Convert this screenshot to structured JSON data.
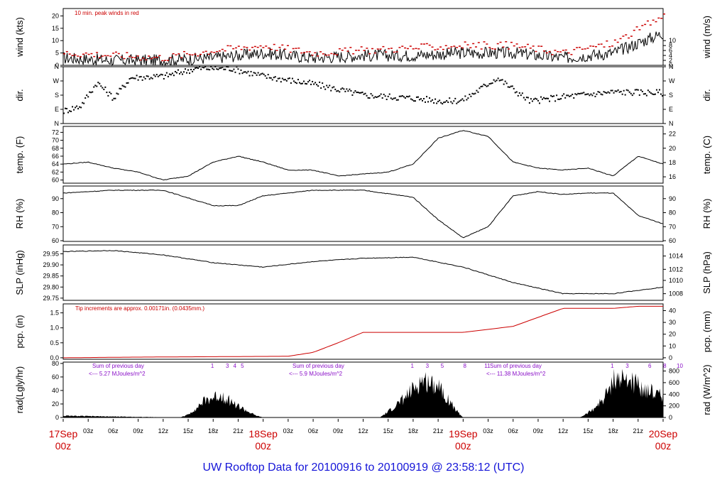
{
  "page_title": "UW Rooftop Data for 20100916  to  20100919 @ 23:58:12  (UTC)",
  "colors": {
    "axis": "#000000",
    "red": "#cc0000",
    "purple": "#8a10c8",
    "title_blue": "#1515d8"
  },
  "time_axis": {
    "hour_ticks": [
      "03z",
      "06z",
      "09z",
      "12z",
      "15z",
      "18z",
      "21z",
      "03z",
      "06z",
      "09z",
      "12z",
      "15z",
      "18z",
      "21z",
      "03z",
      "06z",
      "09z",
      "12z",
      "15z",
      "18z",
      "21z"
    ],
    "day_labels": [
      {
        "day": "17Sep",
        "hour": "00z"
      },
      {
        "day": "18Sep",
        "hour": "00z"
      },
      {
        "day": "19Sep",
        "hour": "00z"
      },
      {
        "day": "20Sep",
        "hour": "00z"
      }
    ]
  },
  "chart_data": [
    {
      "id": "wind",
      "type": "line",
      "left_label": "wind (kts)",
      "right_label": "wind (m/s)",
      "left_ticks": [
        "0",
        "5",
        "10",
        "15",
        "20"
      ],
      "left_tick_values": [
        0,
        5,
        10,
        15,
        20
      ],
      "right_ticks": [
        "0",
        "2",
        "4",
        "6",
        "8",
        "10"
      ],
      "right_tick_values": [
        0,
        2,
        4,
        6,
        8,
        10
      ],
      "ylim": [
        0,
        23
      ],
      "annotation": "10 min. peak winds in red",
      "series": [
        {
          "name": "wind speed",
          "color": "#000000",
          "x_hours": [
            0,
            6,
            12,
            18,
            24,
            30,
            36,
            42,
            48,
            54,
            60,
            66,
            72
          ],
          "values": [
            3,
            2,
            2,
            3,
            5,
            3,
            4,
            4,
            5,
            5,
            3,
            5,
            13
          ]
        },
        {
          "name": "10 min. peak winds",
          "color": "#cc0000",
          "x_hours": [
            0,
            6,
            12,
            18,
            24,
            30,
            36,
            42,
            48,
            54,
            60,
            66,
            72
          ],
          "values": [
            5,
            4,
            3,
            6,
            8,
            5,
            6,
            7,
            8,
            8,
            5,
            9,
            20
          ]
        }
      ]
    },
    {
      "id": "dir",
      "type": "scatter",
      "left_label": "dir.",
      "right_label": "dir.",
      "left_ticks": [
        "N",
        "E",
        "S",
        "W",
        "N"
      ],
      "left_tick_values": [
        0,
        90,
        180,
        270,
        360
      ],
      "right_ticks": [
        "N",
        "E",
        "S",
        "W",
        "N"
      ],
      "right_tick_values": [
        0,
        90,
        180,
        270,
        360
      ],
      "ylim": [
        0,
        360
      ],
      "series": [
        {
          "name": "wind direction",
          "color": "#000000",
          "x_hours": [
            0,
            2,
            4,
            6,
            8,
            12,
            16,
            20,
            24,
            30,
            36,
            42,
            46,
            48,
            52,
            56,
            60,
            66,
            72
          ],
          "values": [
            80,
            110,
            260,
            160,
            290,
            300,
            350,
            350,
            300,
            250,
            180,
            160,
            140,
            150,
            290,
            140,
            170,
            200,
            195
          ]
        }
      ]
    },
    {
      "id": "temp",
      "type": "line",
      "left_label": "temp. (F)",
      "right_label": "temp. (C)",
      "left_ticks": [
        "60",
        "62",
        "64",
        "66",
        "68",
        "70",
        "72"
      ],
      "left_tick_values": [
        60,
        62,
        64,
        66,
        68,
        70,
        72
      ],
      "right_ticks": [
        "16",
        "18",
        "20",
        "22"
      ],
      "right_tick_values": [
        60.8,
        64.4,
        68,
        71.6
      ],
      "ylim": [
        59.2,
        73.5
      ],
      "series": [
        {
          "name": "temperature",
          "color": "#000000",
          "x_hours": [
            0,
            3,
            6,
            9,
            12,
            15,
            18,
            21,
            24,
            27,
            30,
            33,
            36,
            39,
            42,
            45,
            48,
            51,
            54,
            57,
            60,
            63,
            66,
            69,
            72
          ],
          "values": [
            64,
            64.5,
            63,
            62,
            60,
            61,
            64.5,
            66,
            64.5,
            62.5,
            62.5,
            61,
            61.5,
            62,
            64,
            70.5,
            72.5,
            71,
            64.5,
            63,
            62.5,
            63,
            61,
            66,
            64
          ]
        }
      ]
    },
    {
      "id": "rh",
      "type": "line",
      "left_label": "RH (%)",
      "right_label": "RH (%)",
      "left_ticks": [
        "60",
        "70",
        "80",
        "90"
      ],
      "left_tick_values": [
        60,
        70,
        80,
        90
      ],
      "right_ticks": [
        "60",
        "70",
        "80",
        "90"
      ],
      "right_tick_values": [
        60,
        70,
        80,
        90
      ],
      "ylim": [
        59.5,
        99
      ],
      "series": [
        {
          "name": "relative humidity",
          "color": "#000000",
          "x_hours": [
            0,
            6,
            12,
            18,
            21,
            24,
            30,
            36,
            42,
            45,
            48,
            51,
            54,
            57,
            60,
            63,
            66,
            69,
            72
          ],
          "values": [
            94,
            96,
            96,
            85,
            85,
            92,
            96,
            96,
            91,
            75,
            62,
            70,
            92,
            95,
            93,
            94,
            94,
            78,
            72
          ]
        }
      ]
    },
    {
      "id": "slp",
      "type": "line",
      "left_label": "SLP (inHg)",
      "right_label": "SLP (hPa)",
      "left_ticks": [
        "29.75",
        "29.80",
        "29.85",
        "29.90",
        "29.95"
      ],
      "left_tick_values": [
        29.75,
        29.8,
        29.85,
        29.9,
        29.95
      ],
      "right_ticks": [
        "1008",
        "1010",
        "1012",
        "1014"
      ],
      "right_tick_values": [
        29.77,
        29.83,
        29.88,
        29.94
      ],
      "ylim": [
        29.74,
        29.99
      ],
      "series": [
        {
          "name": "sea level pressure",
          "color": "#000000",
          "x_hours": [
            0,
            6,
            12,
            18,
            24,
            30,
            36,
            42,
            48,
            54,
            60,
            66,
            72
          ],
          "values": [
            29.96,
            29.965,
            29.945,
            29.91,
            29.89,
            29.915,
            29.93,
            29.935,
            29.89,
            29.82,
            29.77,
            29.77,
            29.8
          ]
        }
      ]
    },
    {
      "id": "pcp",
      "type": "line",
      "left_label": "pcp. (in)",
      "right_label": "pcp. (mm)",
      "left_ticks": [
        "0.0",
        "0.5",
        "1.0",
        "1.5"
      ],
      "left_tick_values": [
        0,
        0.5,
        1.0,
        1.5
      ],
      "right_ticks": [
        "0",
        "10",
        "20",
        "30",
        "40"
      ],
      "right_tick_values": [
        0,
        0.394,
        0.787,
        1.181,
        1.575
      ],
      "ylim": [
        -0.05,
        1.8
      ],
      "annotation": "Tip increments are approx. 0.00171in. (0.0435mm.)",
      "series": [
        {
          "name": "precipitation",
          "color": "#cc0000",
          "x_hours": [
            0,
            8,
            27,
            30,
            33,
            36,
            48,
            51,
            54,
            57,
            60,
            66,
            69,
            72
          ],
          "values": [
            0.0,
            0.02,
            0.05,
            0.18,
            0.5,
            0.85,
            0.85,
            0.95,
            1.05,
            1.35,
            1.65,
            1.65,
            1.72,
            1.72
          ]
        }
      ]
    },
    {
      "id": "rad",
      "type": "area",
      "left_label": "rad(Lgly/hr)",
      "right_label": "rad (W/m^2)",
      "left_ticks": [
        "0",
        "20",
        "40",
        "60",
        "80"
      ],
      "left_tick_values": [
        0,
        20,
        40,
        60,
        80
      ],
      "right_ticks": [
        "0",
        "200",
        "400",
        "600",
        "800"
      ],
      "right_tick_values": [
        0,
        17.2,
        34.4,
        51.6,
        68.8
      ],
      "ylim": [
        0,
        82
      ],
      "annotations": [
        {
          "line1": "Sum of previous day",
          "line2": "<--- 5.27 MJoules/m^2"
        },
        {
          "line1": "Sum of previous day",
          "line2": "<--- 5.9 MJoules/m^2"
        },
        {
          "line1": "Sum of previous day",
          "line2": "<--- 11.38 MJoules/m^2"
        }
      ],
      "event_markers": [
        {
          "day_start": 0,
          "labels": [
            "1",
            "3",
            "4",
            "5"
          ]
        },
        {
          "day_start": 24,
          "labels": [
            "1",
            "3",
            "5",
            "8",
            "11"
          ]
        },
        {
          "day_start": 48,
          "labels": [
            "1",
            "3",
            "6",
            "8",
            "10"
          ]
        }
      ],
      "series": [
        {
          "name": "solar radiation",
          "color": "#000000",
          "x_hours": [
            0,
            14,
            15,
            17,
            19,
            21,
            22,
            23,
            24,
            38,
            39,
            41,
            43,
            45,
            47,
            48,
            62,
            63,
            64,
            65,
            66,
            68,
            70,
            72
          ],
          "values": [
            3,
            0,
            5,
            30,
            40,
            20,
            12,
            4,
            0,
            0,
            10,
            35,
            65,
            60,
            15,
            0,
            0,
            8,
            20,
            35,
            70,
            65,
            50,
            40
          ]
        }
      ]
    }
  ]
}
